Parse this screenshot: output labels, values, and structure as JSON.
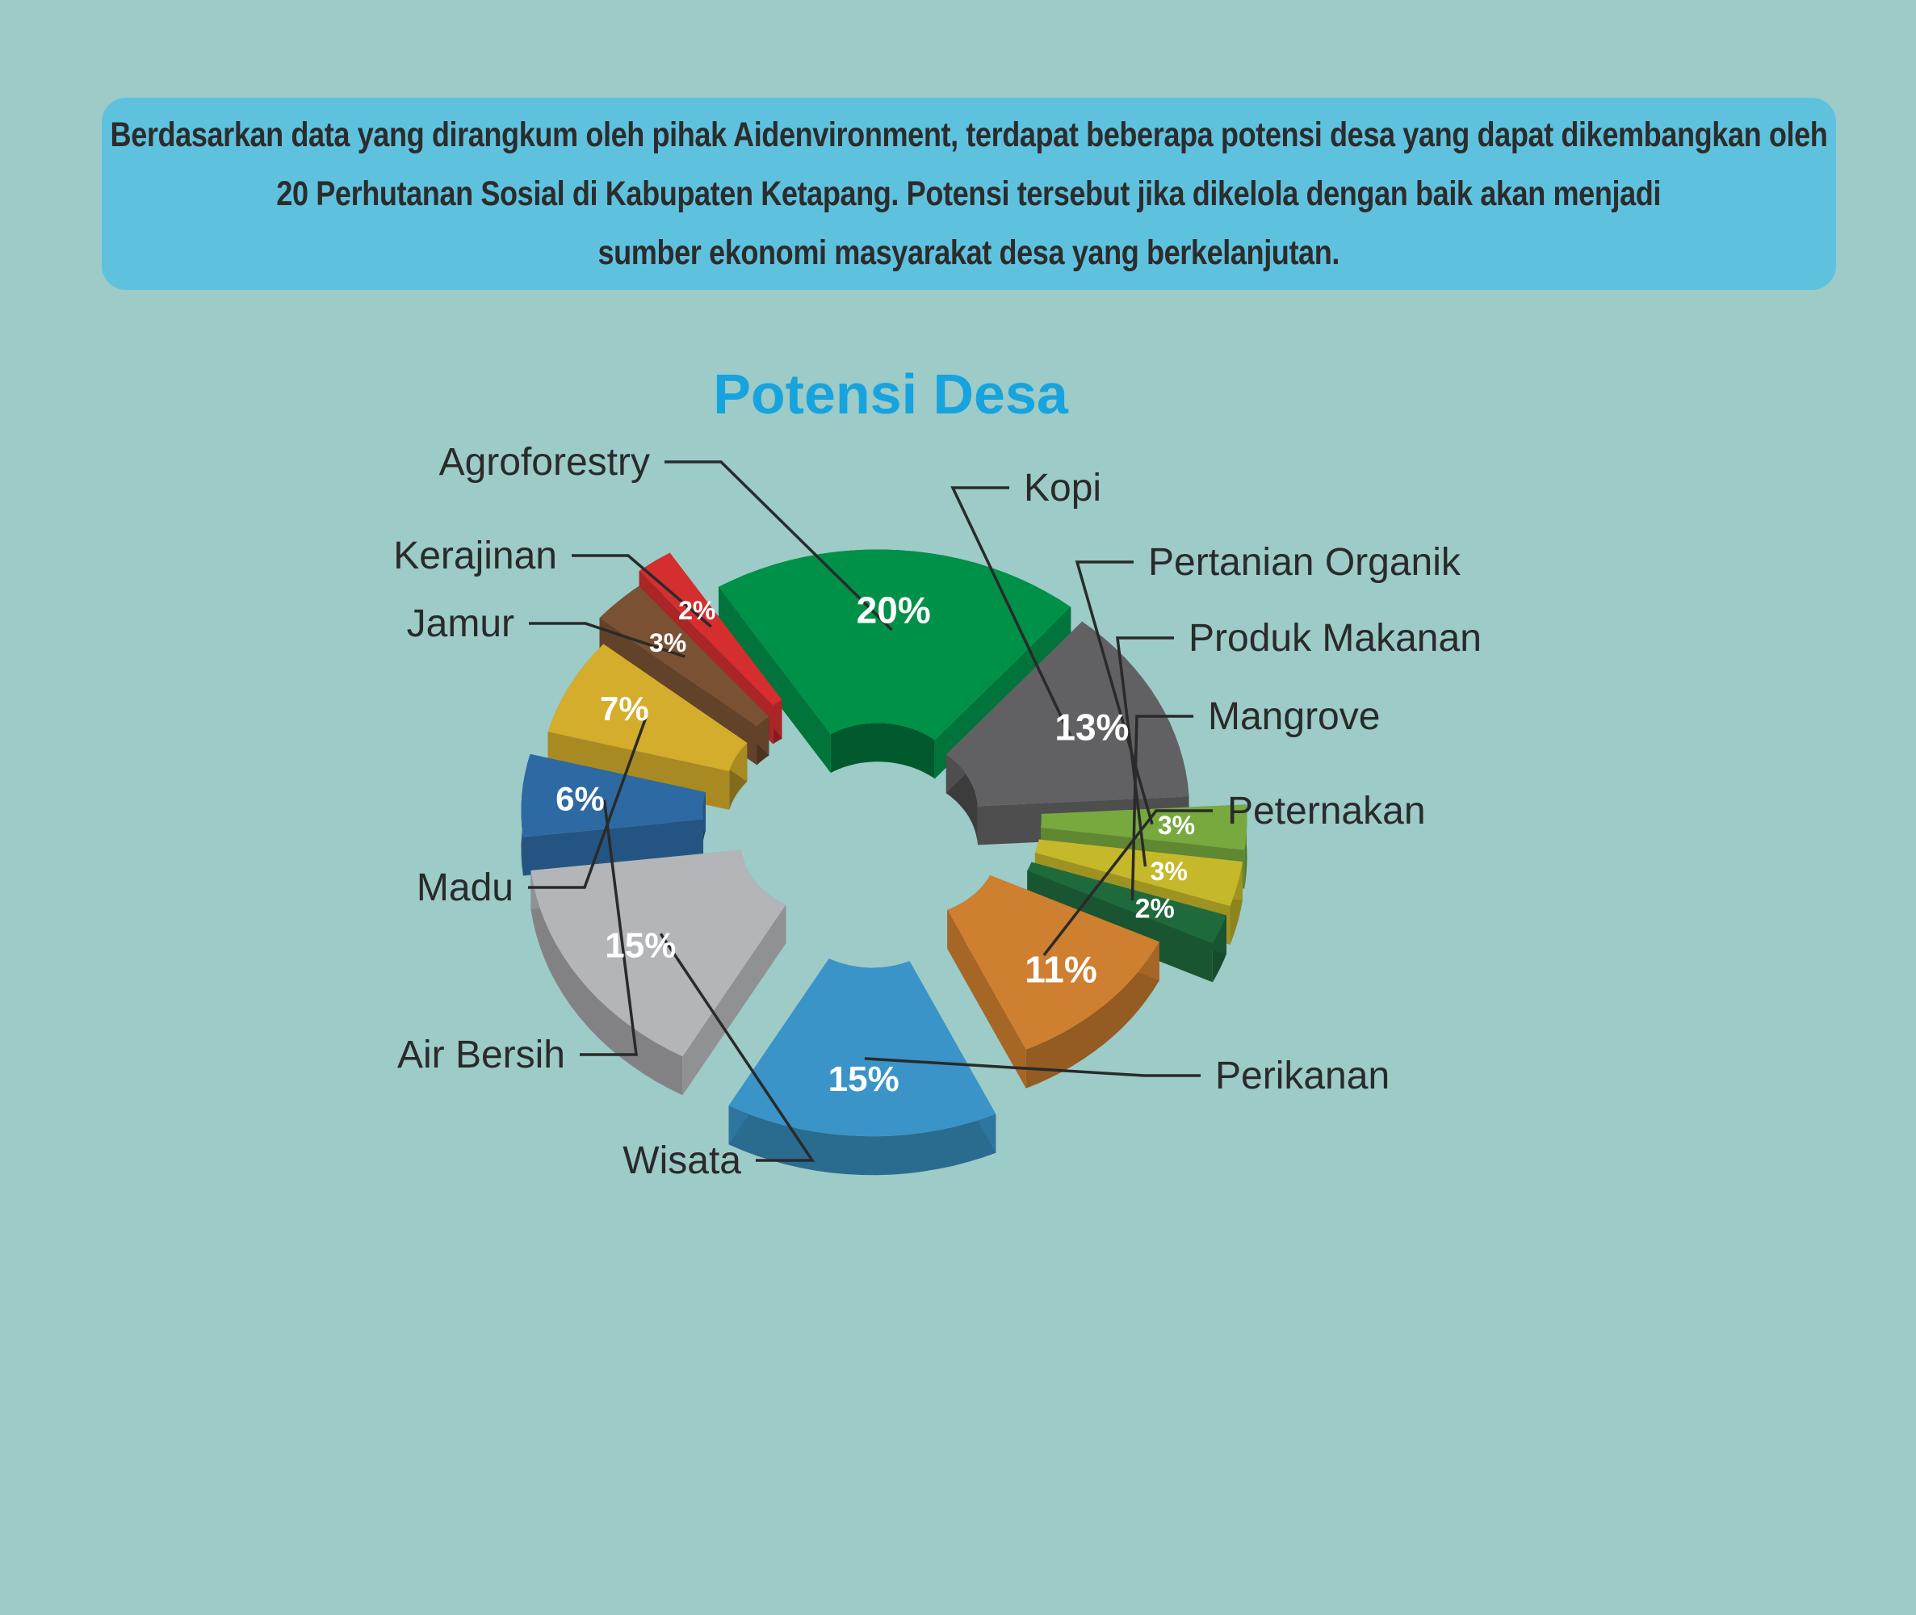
{
  "intro": {
    "lines": [
      "Berdasarkan data yang dirangkum oleh pihak Aidenvironment, terdapat beberapa potensi desa yang dapat dikembangkan oleh",
      "20 Perhutanan Sosial di Kabupaten Ketapang.  Potensi tersebut jika dikelola dengan baik akan menjadi",
      "sumber ekonomi masyarakat desa yang berkelanjutan."
    ]
  },
  "chart_data": {
    "type": "pie",
    "style": "exploded-3d-donut",
    "title": "Potensi Desa",
    "legend": "none",
    "slices": [
      {
        "label": "Agroforestry",
        "value": 20,
        "display": "20%",
        "color": "#009148"
      },
      {
        "label": "Kopi",
        "value": 13,
        "display": "13%",
        "color": "#616163"
      },
      {
        "label": "Pertanian Organik",
        "value": 3,
        "display": "3%",
        "color": "#78a93f"
      },
      {
        "label": "Produk Makanan",
        "value": 3,
        "display": "3%",
        "color": "#c5b82a"
      },
      {
        "label": "Mangrove",
        "value": 2,
        "display": "2%",
        "color": "#1f6a3c"
      },
      {
        "label": "Peternakan",
        "value": 11,
        "display": "11%",
        "color": "#ce7f2f"
      },
      {
        "label": "Perikanan",
        "value": 15,
        "display": "15%",
        "color": "#3a94c8"
      },
      {
        "label": "Wisata",
        "value": 15,
        "display": "15%",
        "color": "#b4b5b8"
      },
      {
        "label": "Air Bersih",
        "value": 6,
        "display": "6%",
        "color": "#2d6aa3"
      },
      {
        "label": "Madu",
        "value": 7,
        "display": "7%",
        "color": "#d3ad2b"
      },
      {
        "label": "Jamur",
        "value": 3,
        "display": "3%",
        "color": "#7a5233"
      },
      {
        "label": "Kerajinan",
        "value": 2,
        "display": "2%",
        "color": "#d42e2f"
      }
    ]
  }
}
